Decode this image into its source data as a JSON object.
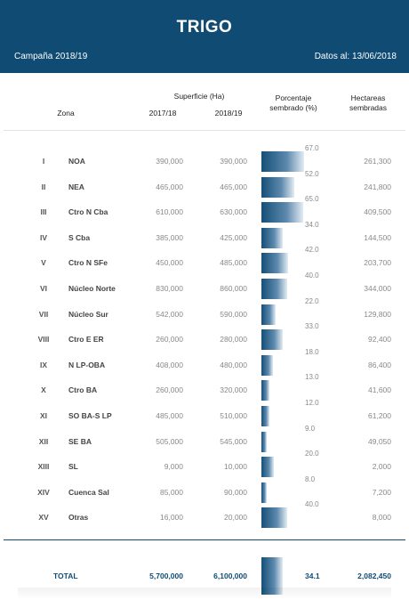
{
  "header": {
    "title": "TRIGO",
    "campaign": "Campaña 2018/19",
    "date": "Datos al: 13/06/2018"
  },
  "columns": {
    "superficie": "Superficie (Ha)",
    "zona": "Zona",
    "year1": "2017/18",
    "year2": "2018/19",
    "porcentaje_line1": "Porcentaje",
    "porcentaje_line2": "sembrado (%)",
    "hectareas_line1": "Hectareas",
    "hectareas_line2": "sembradas"
  },
  "rows": [
    {
      "num": "I",
      "zona": "NOA",
      "s1718": "390,000",
      "s1819": "390,000",
      "pct": "67.0",
      "pct_value": 67.0,
      "ha": "261,300"
    },
    {
      "num": "II",
      "zona": "NEA",
      "s1718": "465,000",
      "s1819": "465,000",
      "pct": "52.0",
      "pct_value": 52.0,
      "ha": "241,800"
    },
    {
      "num": "III",
      "zona": "Ctro N Cba",
      "s1718": "610,000",
      "s1819": "630,000",
      "pct": "65.0",
      "pct_value": 65.0,
      "ha": "409,500"
    },
    {
      "num": "IV",
      "zona": "S Cba",
      "s1718": "385,000",
      "s1819": "425,000",
      "pct": "34.0",
      "pct_value": 34.0,
      "ha": "144,500"
    },
    {
      "num": "V",
      "zona": "Ctro N SFe",
      "s1718": "450,000",
      "s1819": "485,000",
      "pct": "42.0",
      "pct_value": 42.0,
      "ha": "203,700"
    },
    {
      "num": "VI",
      "zona": "Núcleo Norte",
      "s1718": "830,000",
      "s1819": "860,000",
      "pct": "40.0",
      "pct_value": 40.0,
      "ha": "344,000"
    },
    {
      "num": "VII",
      "zona": "Núcleo Sur",
      "s1718": "542,000",
      "s1819": "590,000",
      "pct": "22.0",
      "pct_value": 22.0,
      "ha": "129,800"
    },
    {
      "num": "VIII",
      "zona": "Ctro E ER",
      "s1718": "260,000",
      "s1819": "280,000",
      "pct": "33.0",
      "pct_value": 33.0,
      "ha": "92,400"
    },
    {
      "num": "IX",
      "zona": "N LP-OBA",
      "s1718": "408,000",
      "s1819": "480,000",
      "pct": "18.0",
      "pct_value": 18.0,
      "ha": "86,400"
    },
    {
      "num": "X",
      "zona": "Ctro BA",
      "s1718": "260,000",
      "s1819": "320,000",
      "pct": "13.0",
      "pct_value": 13.0,
      "ha": "41,600"
    },
    {
      "num": "XI",
      "zona": "SO BA-S LP",
      "s1718": "485,000",
      "s1819": "510,000",
      "pct": "12.0",
      "pct_value": 12.0,
      "ha": "61,200"
    },
    {
      "num": "XII",
      "zona": "SE BA",
      "s1718": "505,000",
      "s1819": "545,000",
      "pct": "9.0",
      "pct_value": 9.0,
      "ha": "49,050"
    },
    {
      "num": "XIII",
      "zona": "SL",
      "s1718": "9,000",
      "s1819": "10,000",
      "pct": "20.0",
      "pct_value": 20.0,
      "ha": "2,000"
    },
    {
      "num": "XIV",
      "zona": "Cuenca Sal",
      "s1718": "85,000",
      "s1819": "90,000",
      "pct": "8.0",
      "pct_value": 8.0,
      "ha": "7,200"
    },
    {
      "num": "XV",
      "zona": "Otras",
      "s1718": "16,000",
      "s1819": "20,000",
      "pct": "40.0",
      "pct_value": 40.0,
      "ha": "8,000"
    }
  ],
  "total": {
    "label": "TOTAL",
    "s1718": "5,700,000",
    "s1819": "6,100,000",
    "pct": "34.1",
    "pct_value": 34.1,
    "ha": "2,082,450"
  },
  "colors": {
    "header_bg": "#0f4b73",
    "bar_dark": "#154f78",
    "total_text": "#0f4b73"
  }
}
